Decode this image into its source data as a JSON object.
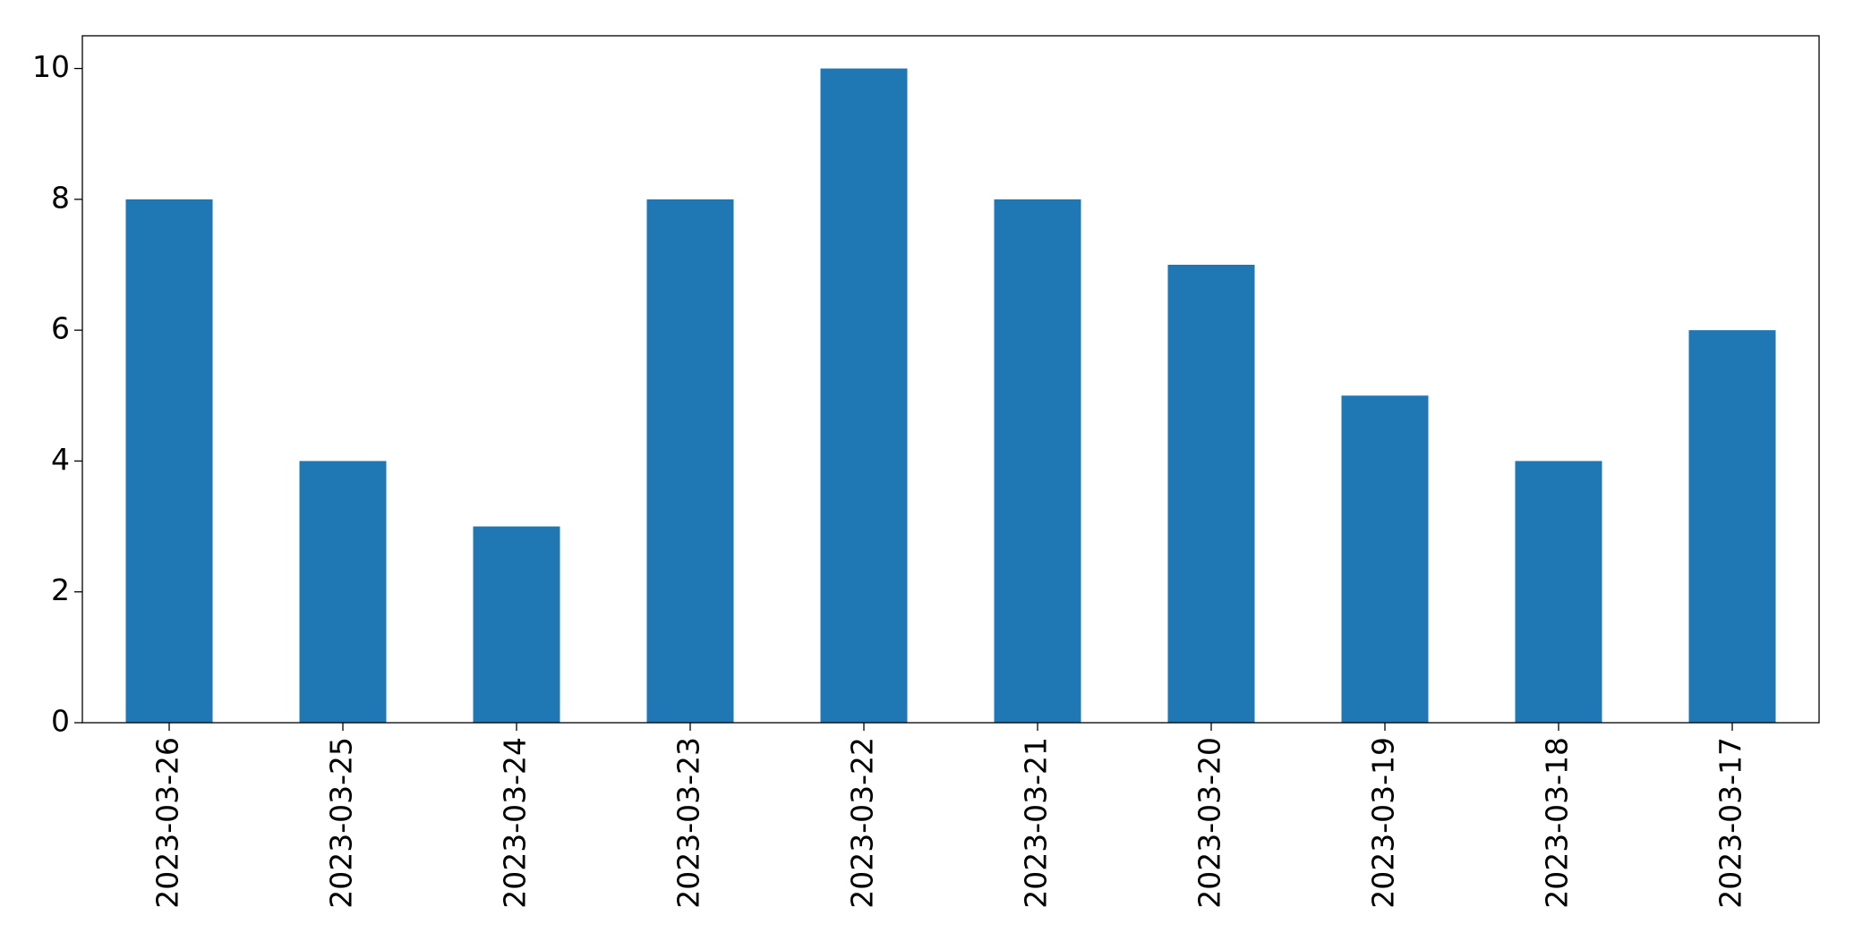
{
  "chart_data": {
    "type": "bar",
    "categories": [
      "2023-03-26",
      "2023-03-25",
      "2023-03-24",
      "2023-03-23",
      "2023-03-22",
      "2023-03-21",
      "2023-03-20",
      "2023-03-19",
      "2023-03-18",
      "2023-03-17"
    ],
    "values": [
      8,
      4,
      3,
      8,
      10,
      8,
      7,
      5,
      4,
      6
    ],
    "color": "#1f77b4",
    "ylim": [
      0,
      10.5
    ],
    "yticks": [
      0,
      2,
      4,
      6,
      8,
      10
    ],
    "grid": false
  }
}
